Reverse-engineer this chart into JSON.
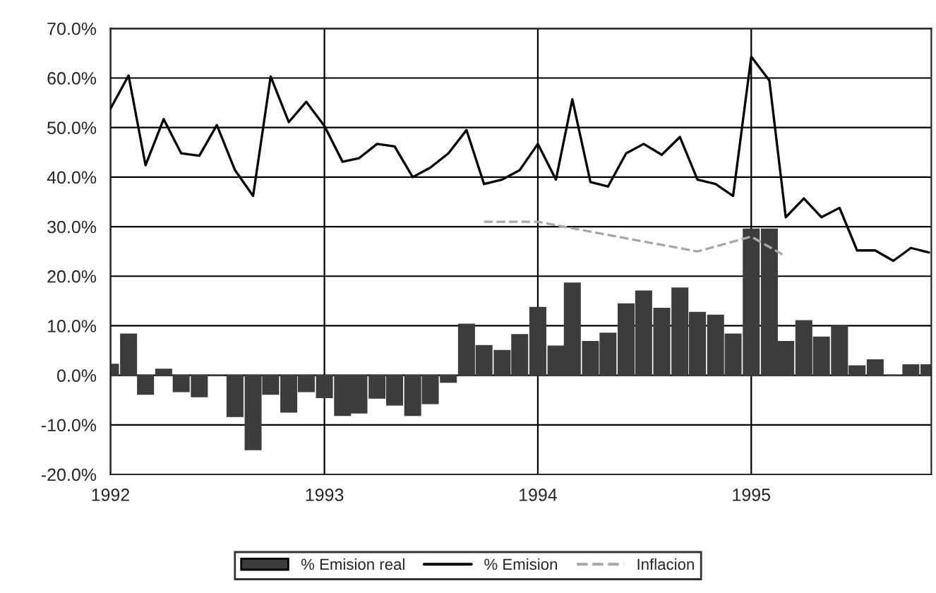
{
  "chart_data": {
    "type": "bar",
    "x": [
      "1992-01",
      "1992-02",
      "1992-03",
      "1992-04",
      "1992-05",
      "1992-06",
      "1992-07",
      "1992-08",
      "1992-09",
      "1992-10",
      "1992-11",
      "1992-12",
      "1993-01",
      "1993-02",
      "1993-03",
      "1993-04",
      "1993-05",
      "1993-06",
      "1993-07",
      "1993-08",
      "1993-09",
      "1993-10",
      "1993-11",
      "1993-12",
      "1994-01",
      "1994-02",
      "1994-03",
      "1994-04",
      "1994-05",
      "1994-06",
      "1994-07",
      "1994-08",
      "1994-09",
      "1994-10",
      "1994-11",
      "1994-12",
      "1995-01",
      "1995-02",
      "1995-03",
      "1995-04",
      "1995-05",
      "1995-06",
      "1995-07",
      "1995-08",
      "1995-09",
      "1995-10",
      "1995-11"
    ],
    "series": [
      {
        "name": "% Emision real",
        "color": "#3c3c3c",
        "values": [
          2.2,
          8.3,
          -3.8,
          1.2,
          -3.3,
          -4.3,
          0,
          -8.3,
          -15.0,
          -3.8,
          -7.4,
          -3.3,
          -4.5,
          -8.1,
          -7.6,
          -4.6,
          -6.0,
          -8.1,
          -5.7,
          -1.4,
          10.3,
          6.0,
          5.0,
          8.2,
          13.7,
          5.9,
          18.6,
          6.8,
          8.5,
          14.4,
          17.0,
          13.5,
          17.6,
          12.7,
          12.1,
          8.3,
          29.5,
          29.5,
          6.8,
          11.0,
          7.7,
          10.1,
          1.9,
          3.1,
          0,
          2.1,
          2.1
        ]
      },
      {
        "name": "% Emision",
        "type": "line",
        "color": "#000000",
        "line_style": "solid",
        "values": [
          53.8,
          60.5,
          42.4,
          51.7,
          44.8,
          44.3,
          50.5,
          41.4,
          36.2,
          60.3,
          51.1,
          55.2,
          50.3,
          43.1,
          43.8,
          46.7,
          46.2,
          40.0,
          41.9,
          44.8,
          49.5,
          38.6,
          39.5,
          41.4,
          46.7,
          39.5,
          55.7,
          39.0,
          38.1,
          44.8,
          46.7,
          44.5,
          48.1,
          39.5,
          38.6,
          36.2,
          64.3,
          59.5,
          31.9,
          35.7,
          31.9,
          33.8,
          25.2,
          25.2,
          23.1,
          25.7,
          24.8
        ]
      },
      {
        "name": "Inflacion",
        "type": "line",
        "color": "#a8a8a8",
        "line_style": "dashed",
        "x": [
          "1993-10",
          "1994-01",
          "1994-04",
          "1994-07",
          "1994-10",
          "1995-01",
          "1995-03"
        ],
        "values": [
          31,
          31,
          29,
          27,
          25,
          28,
          24
        ]
      }
    ],
    "xlim": [
      "1992-01-01",
      "1995-11-05"
    ],
    "xticks": [
      {
        "value": "1992-01-01",
        "label": "1992"
      },
      {
        "value": "1993-01-01",
        "label": "1993"
      },
      {
        "value": "1994-01-01",
        "label": "1994"
      },
      {
        "value": "1995-01-01",
        "label": "1995"
      }
    ],
    "ylim": [
      -20,
      70
    ],
    "yticks": [
      {
        "value": -20,
        "label": "-20.0%"
      },
      {
        "value": -10,
        "label": "-10.0%"
      },
      {
        "value": 0,
        "label": "0.0%"
      },
      {
        "value": 10,
        "label": "10.0%"
      },
      {
        "value": 20,
        "label": "20.0%"
      },
      {
        "value": 30,
        "label": "30.0%"
      },
      {
        "value": 40,
        "label": "40.0%"
      },
      {
        "value": 50,
        "label": "50.0%"
      },
      {
        "value": 60,
        "label": "60.0%"
      },
      {
        "value": 70,
        "label": "70.0%"
      }
    ],
    "grid": true,
    "legend": "bottom",
    "marker": "none"
  }
}
